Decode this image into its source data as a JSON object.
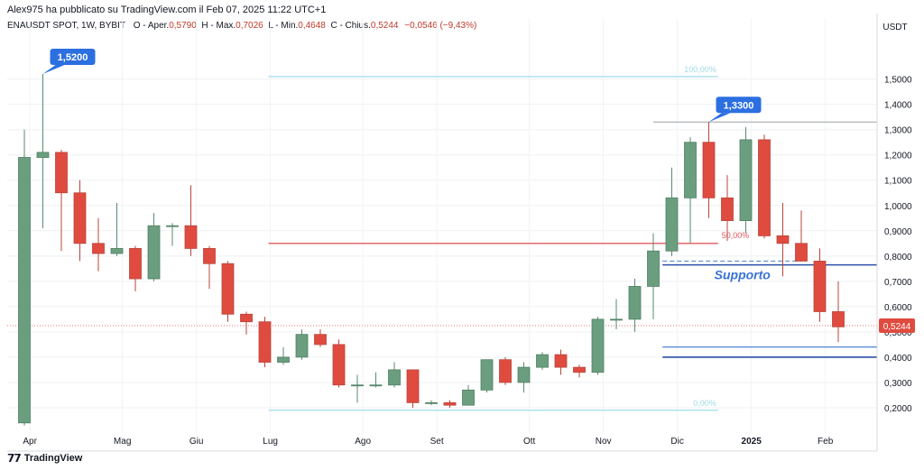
{
  "header": {
    "published_line": "Alex975 ha pubblicato su TradingView.com il Feb 07, 2025 11:22 UTC+1",
    "symbol": "ENAUSDT SPOT, 1W, BYBIT",
    "open_label": "O - Aper.",
    "open_value": "0,5790",
    "high_label": "H - Max.",
    "high_value": "0,7026",
    "low_label": "L - Min.",
    "low_value": "0,4648",
    "close_label": "C - Chius.",
    "close_value": "0,5244",
    "change": "−0,0546 (−9,43%)"
  },
  "footer": {
    "logo_text": "TradingView"
  },
  "colors": {
    "up": "#6a9e7f",
    "down": "#e04b3f",
    "fib": "#9fdce6",
    "resistance": "#e05a60",
    "support": "#2b4fa8",
    "support_light": "#5b8ed6",
    "label_bg": "#2c6fe0",
    "price_tag": "#e04b3f"
  },
  "chart_data": {
    "type": "candlestick",
    "currency": "USDT",
    "x_labels": [
      "Apr",
      "Mag",
      "Giu",
      "Lug",
      "Ago",
      "Set",
      "Ott",
      "Nov",
      "Dic",
      "2025",
      "Feb"
    ],
    "x_label_weeks": [
      0.3,
      5.3,
      9.3,
      13.3,
      18.3,
      22.3,
      27.3,
      31.3,
      35.3,
      39.3,
      43.3
    ],
    "y_ticks": [
      "1,5000",
      "1,4000",
      "1,3000",
      "1,2000",
      "1,1000",
      "1,0000",
      "0,9000",
      "0,8000",
      "0,7000",
      "0,6000",
      "0,5000",
      "0,4000",
      "0,3000",
      "0,2000"
    ],
    "ylim": [
      0.1,
      1.67
    ],
    "candles": [
      {
        "o": 0.14,
        "h": 1.3,
        "l": 0.13,
        "c": 1.19
      },
      {
        "o": 1.19,
        "h": 1.52,
        "l": 0.91,
        "c": 1.21
      },
      {
        "o": 1.21,
        "h": 1.22,
        "l": 0.82,
        "c": 1.05
      },
      {
        "o": 1.05,
        "h": 1.1,
        "l": 0.78,
        "c": 0.85
      },
      {
        "o": 0.85,
        "h": 0.95,
        "l": 0.74,
        "c": 0.81
      },
      {
        "o": 0.81,
        "h": 1.01,
        "l": 0.8,
        "c": 0.83
      },
      {
        "o": 0.83,
        "h": 0.84,
        "l": 0.66,
        "c": 0.71
      },
      {
        "o": 0.71,
        "h": 0.97,
        "l": 0.7,
        "c": 0.92
      },
      {
        "o": 0.92,
        "h": 0.93,
        "l": 0.84,
        "c": 0.92
      },
      {
        "o": 0.92,
        "h": 1.08,
        "l": 0.8,
        "c": 0.83
      },
      {
        "o": 0.83,
        "h": 0.84,
        "l": 0.67,
        "c": 0.77
      },
      {
        "o": 0.77,
        "h": 0.78,
        "l": 0.54,
        "c": 0.57
      },
      {
        "o": 0.57,
        "h": 0.58,
        "l": 0.49,
        "c": 0.54
      },
      {
        "o": 0.54,
        "h": 0.56,
        "l": 0.36,
        "c": 0.38
      },
      {
        "o": 0.38,
        "h": 0.44,
        "l": 0.37,
        "c": 0.4
      },
      {
        "o": 0.4,
        "h": 0.51,
        "l": 0.39,
        "c": 0.49
      },
      {
        "o": 0.49,
        "h": 0.51,
        "l": 0.44,
        "c": 0.45
      },
      {
        "o": 0.45,
        "h": 0.47,
        "l": 0.28,
        "c": 0.29
      },
      {
        "o": 0.29,
        "h": 0.33,
        "l": 0.22,
        "c": 0.29
      },
      {
        "o": 0.29,
        "h": 0.34,
        "l": 0.28,
        "c": 0.29
      },
      {
        "o": 0.29,
        "h": 0.38,
        "l": 0.28,
        "c": 0.35
      },
      {
        "o": 0.35,
        "h": 0.35,
        "l": 0.2,
        "c": 0.22
      },
      {
        "o": 0.22,
        "h": 0.23,
        "l": 0.21,
        "c": 0.22
      },
      {
        "o": 0.22,
        "h": 0.23,
        "l": 0.2,
        "c": 0.21
      },
      {
        "o": 0.21,
        "h": 0.29,
        "l": 0.21,
        "c": 0.27
      },
      {
        "o": 0.27,
        "h": 0.39,
        "l": 0.26,
        "c": 0.39
      },
      {
        "o": 0.39,
        "h": 0.4,
        "l": 0.29,
        "c": 0.3
      },
      {
        "o": 0.3,
        "h": 0.38,
        "l": 0.26,
        "c": 0.36
      },
      {
        "o": 0.36,
        "h": 0.42,
        "l": 0.35,
        "c": 0.41
      },
      {
        "o": 0.41,
        "h": 0.43,
        "l": 0.33,
        "c": 0.36
      },
      {
        "o": 0.36,
        "h": 0.37,
        "l": 0.32,
        "c": 0.34
      },
      {
        "o": 0.34,
        "h": 0.56,
        "l": 0.33,
        "c": 0.55
      },
      {
        "o": 0.55,
        "h": 0.63,
        "l": 0.51,
        "c": 0.55
      },
      {
        "o": 0.55,
        "h": 0.71,
        "l": 0.5,
        "c": 0.68
      },
      {
        "o": 0.68,
        "h": 0.89,
        "l": 0.55,
        "c": 0.82
      },
      {
        "o": 0.82,
        "h": 1.15,
        "l": 0.8,
        "c": 1.03
      },
      {
        "o": 1.03,
        "h": 1.27,
        "l": 0.85,
        "c": 1.25
      },
      {
        "o": 1.25,
        "h": 1.33,
        "l": 0.95,
        "c": 1.03
      },
      {
        "o": 1.03,
        "h": 1.12,
        "l": 0.86,
        "c": 0.94
      },
      {
        "o": 0.94,
        "h": 1.31,
        "l": 0.89,
        "c": 1.26
      },
      {
        "o": 1.26,
        "h": 1.28,
        "l": 0.87,
        "c": 0.88
      },
      {
        "o": 0.88,
        "h": 1.01,
        "l": 0.72,
        "c": 0.85
      },
      {
        "o": 0.85,
        "h": 0.98,
        "l": 0.78,
        "c": 0.78
      },
      {
        "o": 0.78,
        "h": 0.83,
        "l": 0.54,
        "c": 0.58
      },
      {
        "o": 0.58,
        "h": 0.7,
        "l": 0.46,
        "c": 0.52
      }
    ],
    "annotations": {
      "high_label_1": {
        "text": "1,5200",
        "week": 1,
        "price": 1.52
      },
      "high_label_2": {
        "text": "1,3300",
        "week": 37,
        "price": 1.33
      },
      "fib_100": {
        "text": "100,00%",
        "price": 1.51,
        "from_week": 13.2,
        "to_week": 37.5
      },
      "fib_50": {
        "text": "50,00%",
        "price": 0.85,
        "from_week": 13.2,
        "to_week": 37.5
      },
      "fib_0": {
        "text": "0,00%",
        "price": 0.19,
        "from_week": 13.2,
        "to_week": 37.5
      },
      "resistance_line": {
        "price": 0.85,
        "from_week": 13.2,
        "to_week": 37.5
      },
      "supporto_label": "Supporto",
      "support_line": {
        "price": 0.765,
        "from_week": 34.5
      },
      "support_dashed": {
        "price": 0.78,
        "from_week": 34.5,
        "to_week": 42
      },
      "lower_support_1": {
        "price": 0.44,
        "from_week": 34.5
      },
      "lower_support_2": {
        "price": 0.4,
        "from_week": 34.5
      },
      "high_level_line": {
        "price": 1.33,
        "from_week": 34
      },
      "last_price": {
        "text": "0,5244",
        "price": 0.5244
      }
    }
  }
}
